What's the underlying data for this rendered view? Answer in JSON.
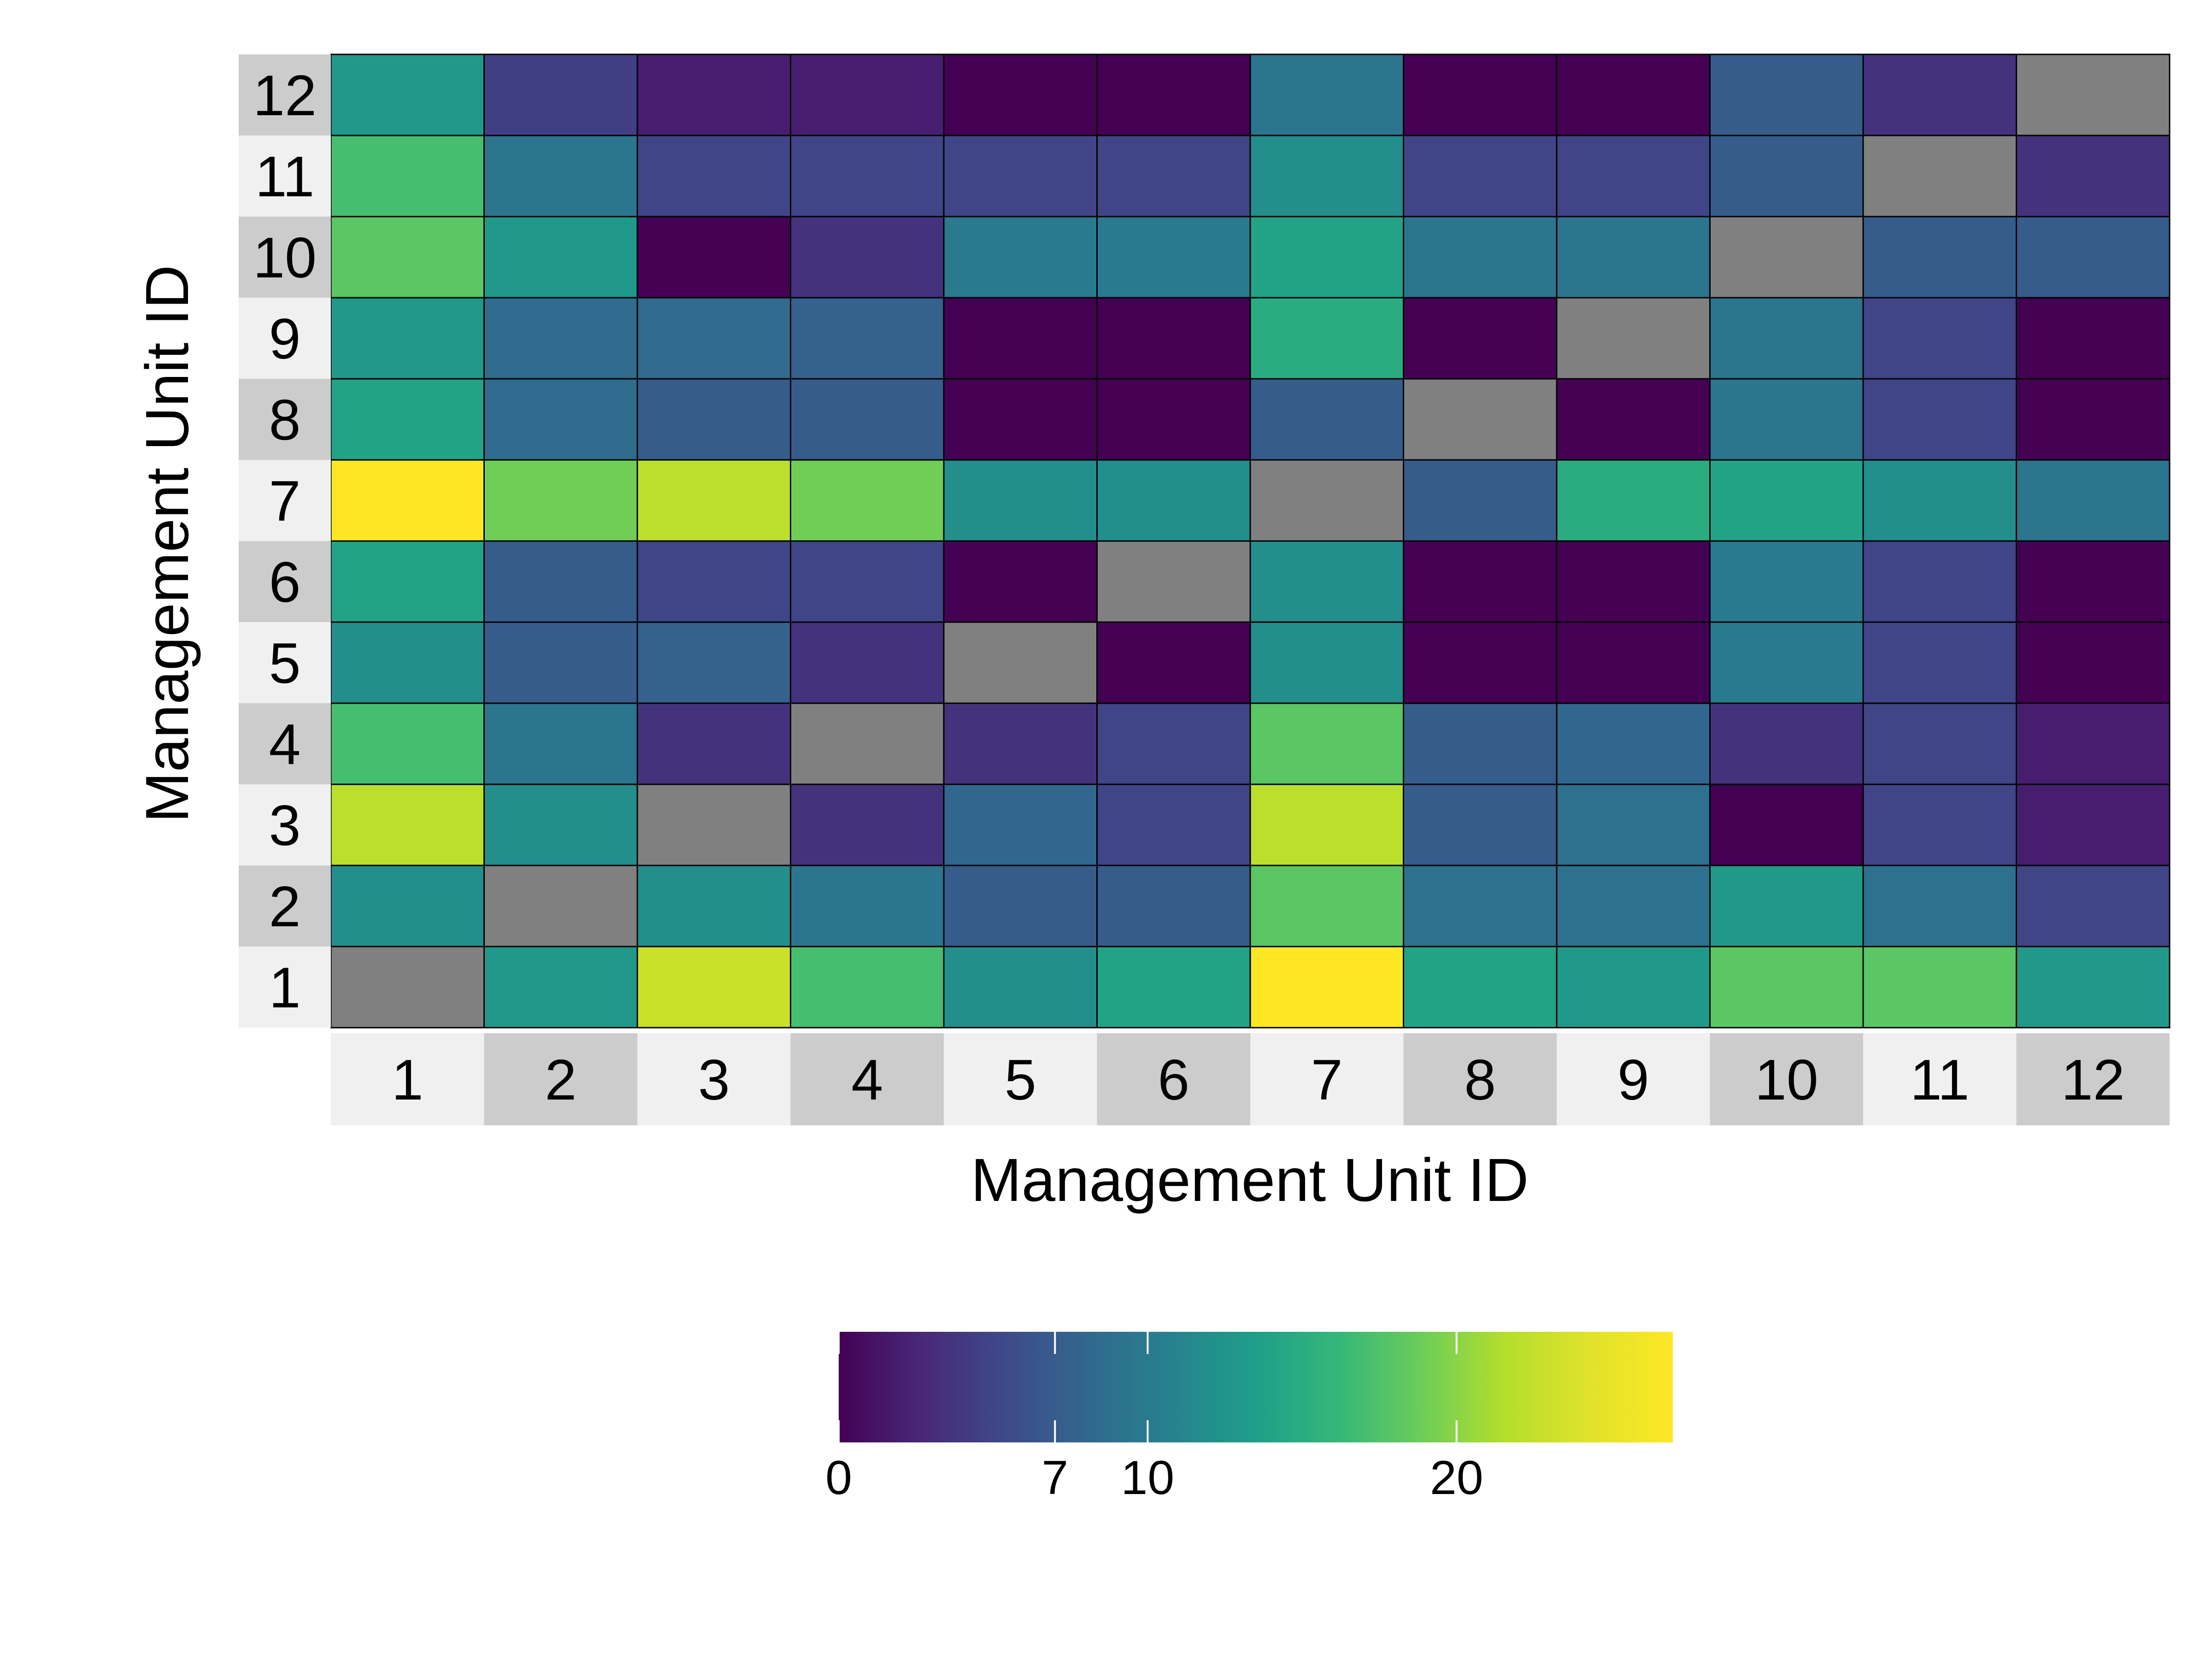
{
  "chart_data": {
    "type": "heatmap",
    "title": "",
    "xlabel": "Management Unit ID",
    "ylabel": "Management Unit ID",
    "x_categories": [
      "1",
      "2",
      "3",
      "4",
      "5",
      "6",
      "7",
      "8",
      "9",
      "10",
      "11",
      "12"
    ],
    "y_categories": [
      "1",
      "2",
      "3",
      "4",
      "5",
      "6",
      "7",
      "8",
      "9",
      "10",
      "11",
      "12"
    ],
    "rows_top_to_bottom": [
      {
        "y": "12",
        "values": [
          13,
          4.5,
          2,
          2,
          0,
          0,
          9.5,
          0,
          0,
          7,
          3.5,
          null
        ]
      },
      {
        "y": "11",
        "values": [
          17,
          9.5,
          5,
          5,
          5,
          5,
          12,
          5,
          5,
          7,
          null,
          3.5
        ]
      },
      {
        "y": "10",
        "values": [
          18,
          13,
          0,
          3.5,
          10,
          10,
          14,
          9.5,
          9.5,
          null,
          7,
          7
        ]
      },
      {
        "y": "9",
        "values": [
          13,
          8.5,
          8.5,
          7.5,
          0,
          0,
          15,
          0,
          null,
          9.5,
          5,
          0
        ]
      },
      {
        "y": "8",
        "values": [
          14,
          8.5,
          7,
          7,
          0,
          0,
          7,
          null,
          0,
          9.5,
          5,
          0
        ]
      },
      {
        "y": "7",
        "values": [
          27,
          19,
          22,
          19,
          12,
          12,
          null,
          7,
          15,
          14,
          12,
          9.5
        ]
      },
      {
        "y": "6",
        "values": [
          14,
          7,
          5,
          5,
          0,
          null,
          12,
          0,
          0,
          10,
          5,
          0
        ]
      },
      {
        "y": "5",
        "values": [
          12,
          7,
          7.5,
          3.5,
          null,
          0,
          12,
          0,
          0,
          10,
          5,
          0
        ]
      },
      {
        "y": "4",
        "values": [
          17,
          9.5,
          3.5,
          null,
          3.5,
          5,
          18,
          7,
          8,
          3.5,
          5,
          2
        ]
      },
      {
        "y": "3",
        "values": [
          22,
          12,
          null,
          3.5,
          8,
          5,
          22,
          7,
          9,
          0,
          5,
          2
        ]
      },
      {
        "y": "2",
        "values": [
          12,
          null,
          12,
          9.5,
          7,
          7,
          18,
          9,
          9,
          13,
          9,
          5
        ]
      },
      {
        "y": "1",
        "values": [
          null,
          13,
          23,
          17,
          12,
          14,
          27,
          14,
          13,
          18,
          18,
          13
        ]
      }
    ],
    "missing_color": "#808080",
    "colorscale": "viridis",
    "colorbar": {
      "range": [
        0,
        27
      ],
      "ticks": [
        0,
        7,
        10,
        20
      ],
      "tick_labels": [
        "0",
        "7",
        "10",
        "20"
      ],
      "placement": "bottom"
    },
    "strip_colors": {
      "light": "#f0f0f0",
      "dark": "#cccccc"
    },
    "grid": false
  }
}
